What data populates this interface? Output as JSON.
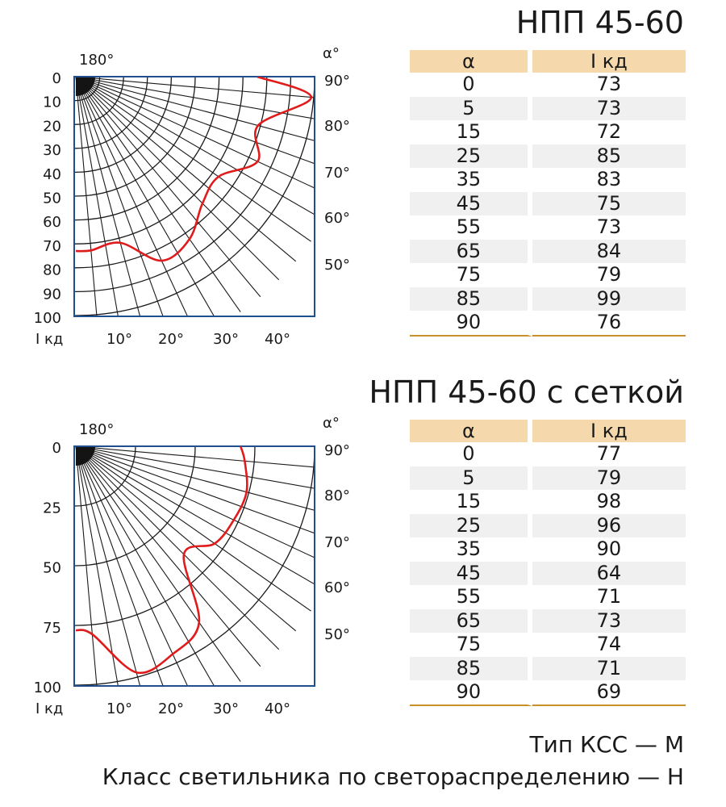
{
  "charts": [
    {
      "title": "НПП 45-60",
      "table": {
        "headers": [
          "α",
          "I кд"
        ],
        "rows": [
          [
            "0",
            "73"
          ],
          [
            "5",
            "73"
          ],
          [
            "15",
            "72"
          ],
          [
            "25",
            "85"
          ],
          [
            "35",
            "83"
          ],
          [
            "45",
            "75"
          ],
          [
            "55",
            "73"
          ],
          [
            "65",
            "84"
          ],
          [
            "75",
            "79"
          ],
          [
            "85",
            "99"
          ],
          [
            "90",
            "76"
          ]
        ]
      }
    },
    {
      "title": "НПП 45-60 с сеткой",
      "table": {
        "headers": [
          "α",
          "I кд"
        ],
        "rows": [
          [
            "0",
            "77"
          ],
          [
            "5",
            "79"
          ],
          [
            "15",
            "98"
          ],
          [
            "25",
            "96"
          ],
          [
            "35",
            "90"
          ],
          [
            "45",
            "64"
          ],
          [
            "55",
            "71"
          ],
          [
            "65",
            "73"
          ],
          [
            "75",
            "74"
          ],
          [
            "85",
            "71"
          ],
          [
            "90",
            "69"
          ]
        ]
      }
    }
  ],
  "chart_data": [
    {
      "type": "polar",
      "title": "НПП 45-60",
      "angle_unit_label": "α°",
      "intensity_unit_label": "I кд",
      "top_angle_label": "180°",
      "angle_axis_labels": [
        "90°",
        "80°",
        "70°",
        "60°",
        "50°"
      ],
      "bottom_angle_labels": [
        "10°",
        "20°",
        "30°",
        "40°"
      ],
      "radial_tick_labels": [
        "0",
        "10",
        "20",
        "30",
        "40",
        "50",
        "60",
        "70",
        "80",
        "90",
        "100"
      ],
      "radial_ticks": [
        0,
        10,
        20,
        30,
        40,
        50,
        60,
        70,
        80,
        90,
        100
      ],
      "rmax": 100,
      "series": [
        {
          "color": "#e01b1b",
          "x": [
            0,
            5,
            15,
            25,
            35,
            45,
            55,
            65,
            75,
            85,
            90
          ],
          "y": [
            73,
            73,
            72,
            85,
            83,
            75,
            73,
            84,
            79,
            99,
            76
          ]
        }
      ]
    },
    {
      "type": "polar",
      "title": "НПП 45-60 с сеткой",
      "angle_unit_label": "α°",
      "intensity_unit_label": "I кд",
      "top_angle_label": "180°",
      "angle_axis_labels": [
        "90°",
        "80°",
        "70°",
        "60°",
        "50°"
      ],
      "bottom_angle_labels": [
        "10°",
        "20°",
        "30°",
        "40°"
      ],
      "radial_tick_labels": [
        "0",
        "25",
        "50",
        "75",
        "100"
      ],
      "radial_ticks": [
        0,
        25,
        50,
        75,
        100
      ],
      "rmax": 100,
      "series": [
        {
          "color": "#e01b1b",
          "x": [
            0,
            5,
            15,
            25,
            35,
            45,
            55,
            65,
            75,
            85,
            90
          ],
          "y": [
            77,
            79,
            98,
            96,
            90,
            64,
            71,
            73,
            74,
            71,
            69
          ]
        }
      ]
    }
  ],
  "footer": {
    "type_line": "Тип КСС — М",
    "class_line": "Класс светильника  по светораспределению — Н"
  },
  "colors": {
    "curve": "#e01b1b",
    "frame": "#1f4f8c",
    "grid": "#1a1a1a",
    "table_header": "#f5d9ad",
    "table_row_shade": "#f0f0f0",
    "table_rule": "#c8902a"
  }
}
